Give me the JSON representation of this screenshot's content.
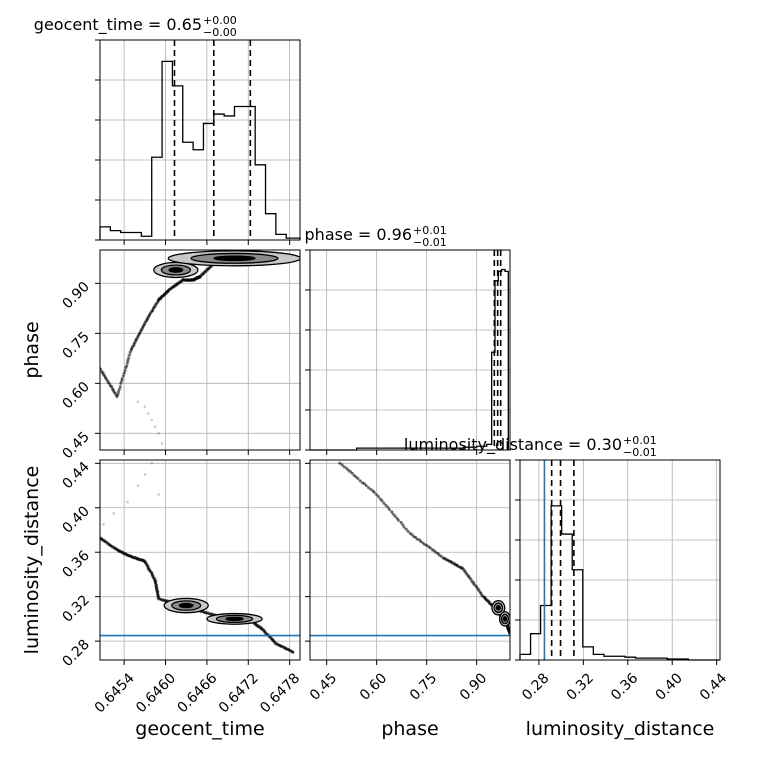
{
  "chart_data": {
    "type": "corner",
    "colors": {
      "truth": "#1f77b4",
      "hist": "#000000",
      "grid": "#b0b0b0",
      "quantile": "#000000"
    },
    "grid": true,
    "parameters": [
      {
        "name": "geocent_time",
        "label": "geocent_time",
        "range": [
          0.64505,
          0.64795
        ],
        "ticks": [
          0.6454,
          0.646,
          0.6466,
          0.6472,
          0.6478
        ],
        "tick_labels": [
          "0.6454",
          "0.6460",
          "0.6466",
          "0.6472",
          "0.6478"
        ],
        "title_main": "geocent_time = 0.65",
        "title_sup": "+0.00",
        "title_sub": "−0.00",
        "quantiles": [
          0.64613,
          0.6467,
          0.64723
        ],
        "hist_bins": [
          0.64505,
          0.6452,
          0.64535,
          0.6455,
          0.64565,
          0.6458,
          0.64595,
          0.6461,
          0.64625,
          0.6464,
          0.64655,
          0.6467,
          0.64685,
          0.647,
          0.64715,
          0.6473,
          0.64745,
          0.6476,
          0.64775,
          0.64795
        ],
        "hist_counts": [
          0.07,
          0.05,
          0.04,
          0.04,
          0.02,
          0.44,
          0.95,
          0.82,
          0.52,
          0.48,
          0.62,
          0.67,
          0.66,
          0.71,
          0.71,
          0.4,
          0.14,
          0.03,
          0.01
        ],
        "truth": null
      },
      {
        "name": "phase",
        "label": "phase",
        "range": [
          0.4,
          1.0
        ],
        "ticks": [
          0.45,
          0.6,
          0.75,
          0.9
        ],
        "tick_labels": [
          "0.45",
          "0.60",
          "0.75",
          "0.90"
        ],
        "title_main": "phase = 0.96",
        "title_sup": "+0.01",
        "title_sub": "−0.01",
        "quantiles": [
          0.953,
          0.963,
          0.972
        ],
        "hist_bins": [
          0.4,
          0.54,
          0.6,
          0.7,
          0.8,
          0.86,
          0.9,
          0.93,
          0.945,
          0.955,
          0.965,
          0.975,
          0.985,
          0.995
        ],
        "hist_counts": [
          0.0,
          0.01,
          0.01,
          0.01,
          0.01,
          0.015,
          0.02,
          0.03,
          0.52,
          0.9,
          0.95,
          0.96,
          0.95
        ],
        "truth": null
      },
      {
        "name": "luminosity_distance",
        "label": "luminosity_distance",
        "range": [
          0.263,
          0.443
        ],
        "ticks": [
          0.28,
          0.32,
          0.36,
          0.4,
          0.44
        ],
        "tick_labels": [
          "0.28",
          "0.32",
          "0.36",
          "0.40",
          "0.44"
        ],
        "title_main": "luminosity_distance = 0.30",
        "title_sup": "+0.01",
        "title_sub": "−0.01",
        "quantiles": [
          0.2915,
          0.2995,
          0.3115
        ],
        "hist_bins": [
          0.263,
          0.2725,
          0.2815,
          0.291,
          0.3005,
          0.31,
          0.3195,
          0.329,
          0.3385,
          0.348,
          0.3575,
          0.367,
          0.3765,
          0.386,
          0.3955,
          0.405,
          0.4145,
          0.443
        ],
        "hist_counts": [
          0.03,
          0.14,
          0.29,
          0.82,
          0.67,
          0.48,
          0.07,
          0.03,
          0.02,
          0.02,
          0.015,
          0.01,
          0.01,
          0.01,
          0.005,
          0.005,
          0.0
        ],
        "truth": 0.285
      }
    ],
    "pairs": [
      {
        "x": "geocent_time",
        "y": "phase",
        "track": [
          [
            0.64505,
            0.645
          ],
          [
            0.6453,
            0.56
          ],
          [
            0.6455,
            0.7
          ],
          [
            0.6457,
            0.78
          ],
          [
            0.6459,
            0.85
          ],
          [
            0.64605,
            0.88
          ],
          [
            0.64625,
            0.91
          ],
          [
            0.6464,
            0.91
          ],
          [
            0.6465,
            0.92
          ],
          [
            0.6467,
            0.96
          ],
          [
            0.647,
            0.965
          ],
          [
            0.6473,
            0.968
          ],
          [
            0.6478,
            0.985
          ]
        ],
        "scatter": [
          [
            0.64575,
            0.51
          ],
          [
            0.6458,
            0.49
          ],
          [
            0.64585,
            0.47
          ],
          [
            0.6457,
            0.53
          ],
          [
            0.6456,
            0.545
          ],
          [
            0.6459,
            0.45
          ],
          [
            0.64595,
            0.42
          ]
        ],
        "cores": [
          [
            0.64615,
            0.94,
            0.0002,
            0.014
          ],
          [
            0.647,
            0.975,
            0.0006,
            0.014
          ]
        ]
      },
      {
        "x": "geocent_time",
        "y": "luminosity_distance",
        "track": [
          [
            0.64505,
            0.373
          ],
          [
            0.6453,
            0.362
          ],
          [
            0.6455,
            0.356
          ],
          [
            0.6457,
            0.352
          ],
          [
            0.64585,
            0.335
          ],
          [
            0.6459,
            0.318
          ],
          [
            0.6462,
            0.313
          ],
          [
            0.6465,
            0.307
          ],
          [
            0.6468,
            0.302
          ],
          [
            0.6472,
            0.3
          ],
          [
            0.6474,
            0.291
          ],
          [
            0.6476,
            0.278
          ],
          [
            0.64785,
            0.27
          ]
        ],
        "scatter": [
          [
            0.6451,
            0.385
          ],
          [
            0.64525,
            0.395
          ],
          [
            0.64545,
            0.405
          ],
          [
            0.6456,
            0.42
          ],
          [
            0.6457,
            0.43
          ],
          [
            0.6458,
            0.44
          ],
          [
            0.6459,
            0.412
          ]
        ],
        "cores": [
          [
            0.6463,
            0.312,
            0.0002,
            0.004
          ],
          [
            0.647,
            0.3,
            0.00025,
            0.003
          ]
        ]
      },
      {
        "x": "phase",
        "y": "luminosity_distance",
        "track": [
          [
            0.49,
            0.44
          ],
          [
            0.6,
            0.412
          ],
          [
            0.7,
            0.377
          ],
          [
            0.8,
            0.355
          ],
          [
            0.86,
            0.345
          ],
          [
            0.92,
            0.32
          ],
          [
            0.96,
            0.308
          ],
          [
            0.99,
            0.295
          ],
          [
            1.0,
            0.287
          ]
        ],
        "scatter": [],
        "cores": [
          [
            0.965,
            0.31,
            0.012,
            0.004
          ],
          [
            0.985,
            0.3,
            0.01,
            0.004
          ]
        ]
      }
    ]
  }
}
